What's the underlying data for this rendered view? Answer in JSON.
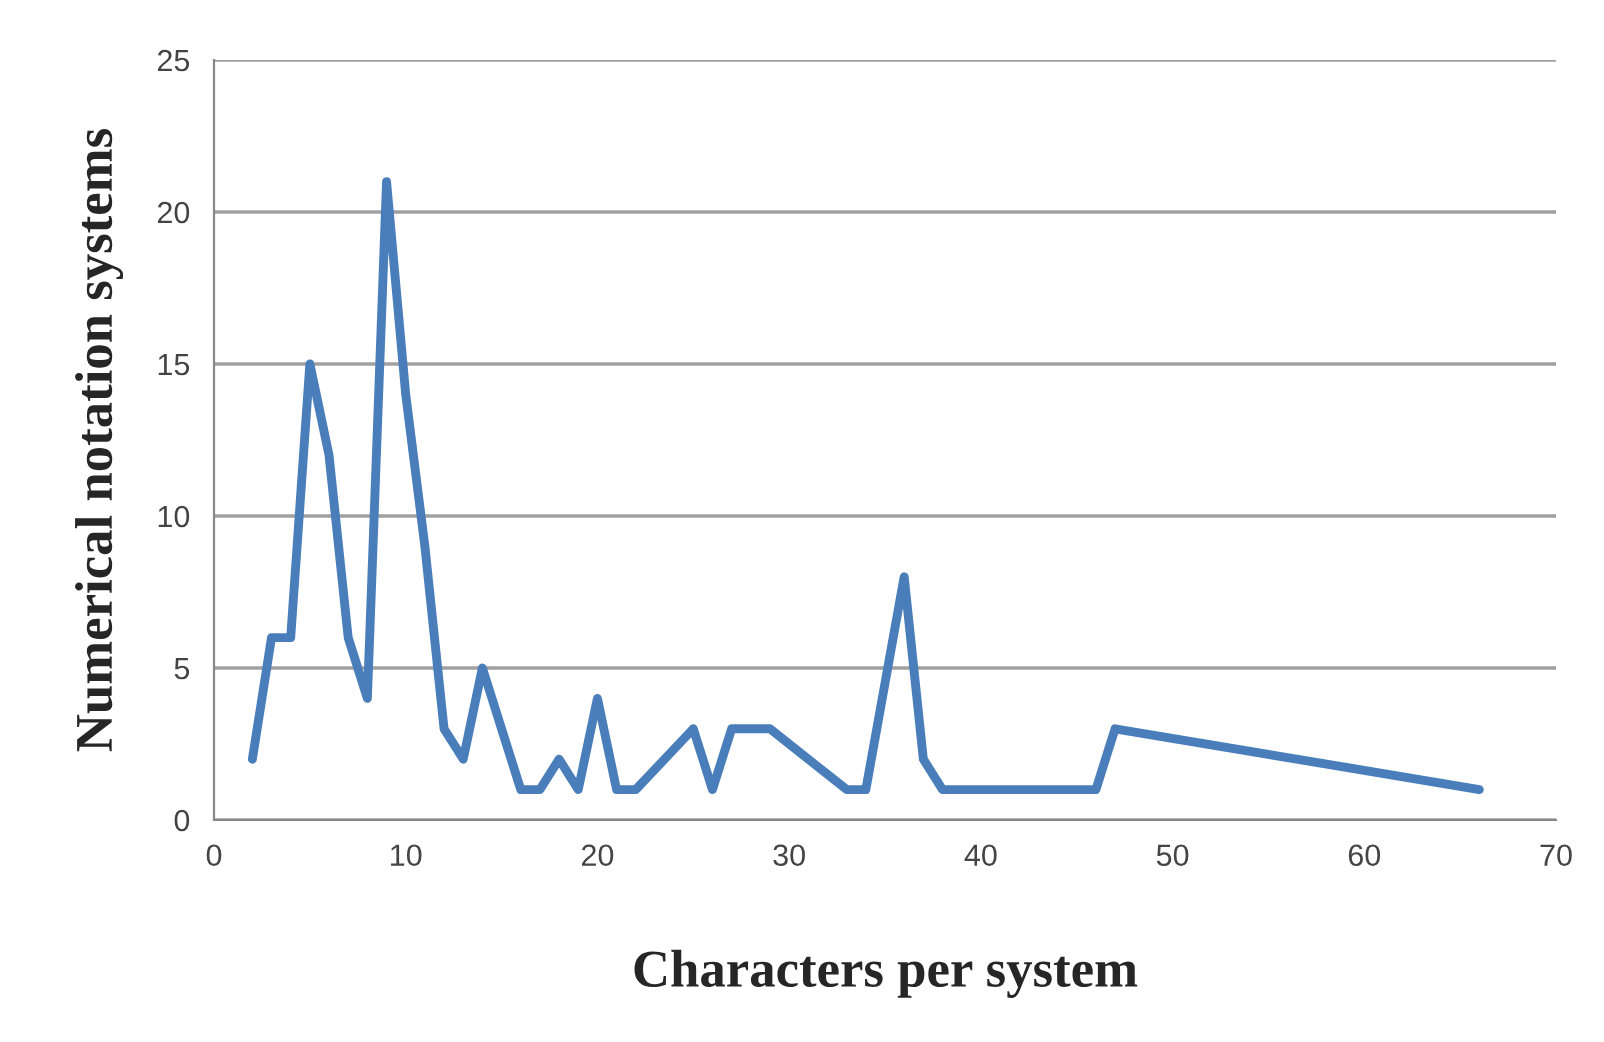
{
  "chart_data": {
    "type": "line",
    "xlabel": "Characters per system",
    "ylabel": "Numerical notation systems",
    "x": [
      2,
      3,
      4,
      5,
      6,
      7,
      8,
      9,
      10,
      11,
      12,
      13,
      14,
      15,
      16,
      17,
      18,
      19,
      20,
      21,
      22,
      25,
      26,
      27,
      29,
      33,
      34,
      36,
      37,
      38,
      46,
      47,
      66
    ],
    "series": [
      {
        "color": "#4a7ebb",
        "values": [
          2,
          6,
          6,
          15,
          12,
          6,
          4,
          21,
          14,
          9,
          3,
          2,
          5,
          3,
          1,
          1,
          2,
          1,
          4,
          1,
          1,
          3,
          1,
          3,
          3,
          1,
          1,
          8,
          2,
          1,
          1,
          3,
          1
        ]
      }
    ],
    "xlim": [
      0,
      70
    ],
    "xticks": [
      0,
      10,
      20,
      30,
      40,
      50,
      60,
      70
    ],
    "ylim": [
      0,
      25
    ],
    "yticks": [
      0,
      5,
      10,
      15,
      20,
      25
    ],
    "grid": "y",
    "legend": false,
    "marker": "none",
    "line_style": "solid"
  }
}
